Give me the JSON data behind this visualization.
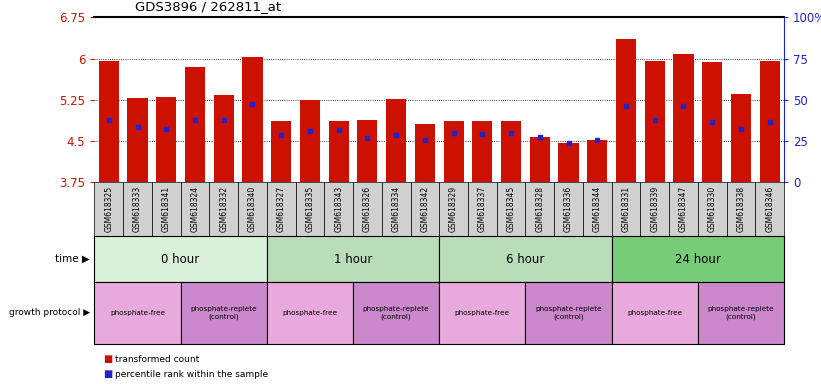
{
  "title": "GDS3896 / 262811_at",
  "samples": [
    "GSM618325",
    "GSM618333",
    "GSM618341",
    "GSM618324",
    "GSM618332",
    "GSM618340",
    "GSM618327",
    "GSM618335",
    "GSM618343",
    "GSM618326",
    "GSM618334",
    "GSM618342",
    "GSM618329",
    "GSM618337",
    "GSM618345",
    "GSM618328",
    "GSM618336",
    "GSM618344",
    "GSM618331",
    "GSM618339",
    "GSM618347",
    "GSM618330",
    "GSM618338",
    "GSM618346"
  ],
  "bar_values": [
    5.95,
    5.28,
    5.31,
    5.85,
    5.34,
    6.03,
    4.87,
    5.25,
    4.87,
    4.88,
    5.27,
    4.82,
    4.87,
    4.87,
    4.87,
    4.57,
    4.47,
    4.52,
    6.35,
    5.95,
    6.08,
    5.93,
    5.35,
    5.95
  ],
  "percentile_values": [
    4.89,
    4.75,
    4.72,
    4.88,
    4.88,
    5.18,
    4.62,
    4.68,
    4.7,
    4.55,
    4.62,
    4.52,
    4.65,
    4.63,
    4.65,
    4.57,
    4.47,
    4.52,
    5.13,
    4.88,
    5.13,
    4.85,
    4.72,
    4.85
  ],
  "ymin": 3.75,
  "ymax": 6.75,
  "yticks": [
    3.75,
    4.5,
    5.25,
    6.0,
    6.75
  ],
  "ytick_labels": [
    "3.75",
    "4.5",
    "5.25",
    "6",
    "6.75"
  ],
  "right_yticks": [
    0,
    25,
    50,
    75,
    100
  ],
  "right_ytick_labels": [
    "0",
    "25",
    "50",
    "75",
    "100%"
  ],
  "bar_color": "#cc1100",
  "pct_color": "#2222cc",
  "time_groups": [
    {
      "label": "0 hour",
      "start": 0,
      "end": 6
    },
    {
      "label": "1 hour",
      "start": 6,
      "end": 12
    },
    {
      "label": "6 hour",
      "start": 12,
      "end": 18
    },
    {
      "label": "24 hour",
      "start": 18,
      "end": 24
    }
  ],
  "time_colors": [
    "#cceecc",
    "#aaddaa",
    "#aaddaa",
    "#88cc88"
  ],
  "protocol_groups": [
    {
      "label": "phosphate-free",
      "start": 0,
      "end": 3
    },
    {
      "label": "phosphate-replete\n(control)",
      "start": 3,
      "end": 6
    },
    {
      "label": "phosphate-free",
      "start": 6,
      "end": 9
    },
    {
      "label": "phosphate-replete\n(control)",
      "start": 9,
      "end": 12
    },
    {
      "label": "phosphate-free",
      "start": 12,
      "end": 15
    },
    {
      "label": "phosphate-replete\n(control)",
      "start": 15,
      "end": 18
    },
    {
      "label": "phosphate-free",
      "start": 18,
      "end": 21
    },
    {
      "label": "phosphate-replete\n(control)",
      "start": 21,
      "end": 24
    }
  ],
  "protocol_pf_color": "#e8aadd",
  "protocol_pr_color": "#cc88cc",
  "xtick_bg_color": "#d0d0d0"
}
